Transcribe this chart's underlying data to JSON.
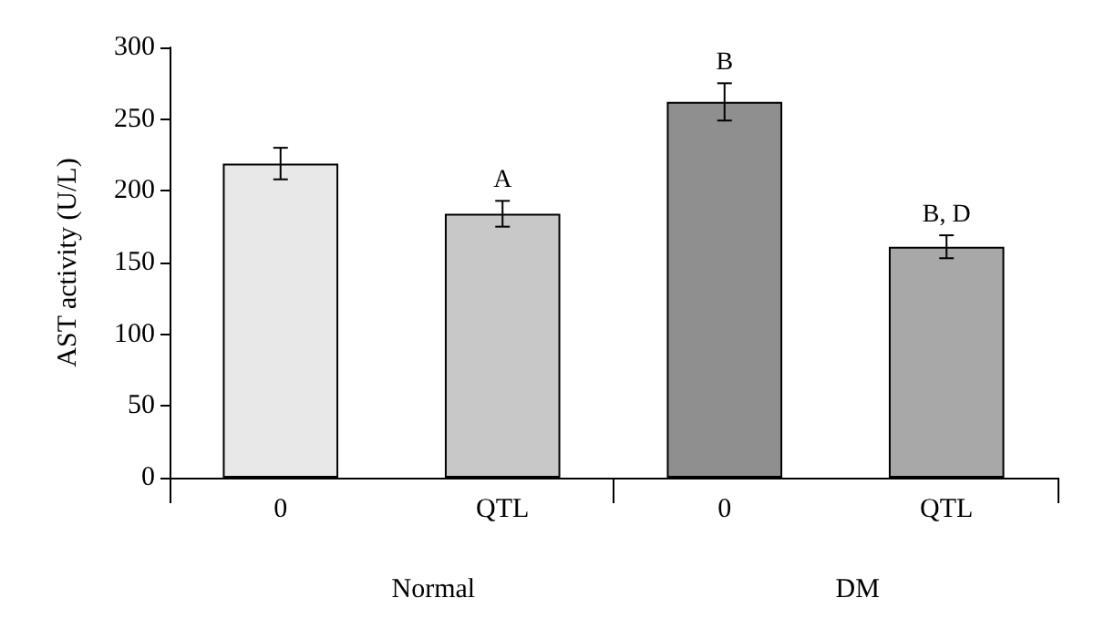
{
  "chart_data": {
    "type": "bar",
    "ylabel": "AST activity (U/L)",
    "categories": [
      "0",
      "QTL",
      "0",
      "QTL"
    ],
    "values": [
      219,
      184,
      262,
      161
    ],
    "errors": [
      11,
      9,
      13,
      8
    ],
    "colors": [
      "#e8e8e8",
      "#c8c8c8",
      "#8f8f8f",
      "#a8a8a8"
    ],
    "value_labels": [
      null,
      "A",
      "B",
      "B, D"
    ],
    "annotations": [
      "Normal",
      "DM"
    ],
    "ylim": [
      0,
      300
    ],
    "yticks": [
      0,
      50,
      100,
      150,
      200,
      250,
      300
    ],
    "grid": false
  }
}
